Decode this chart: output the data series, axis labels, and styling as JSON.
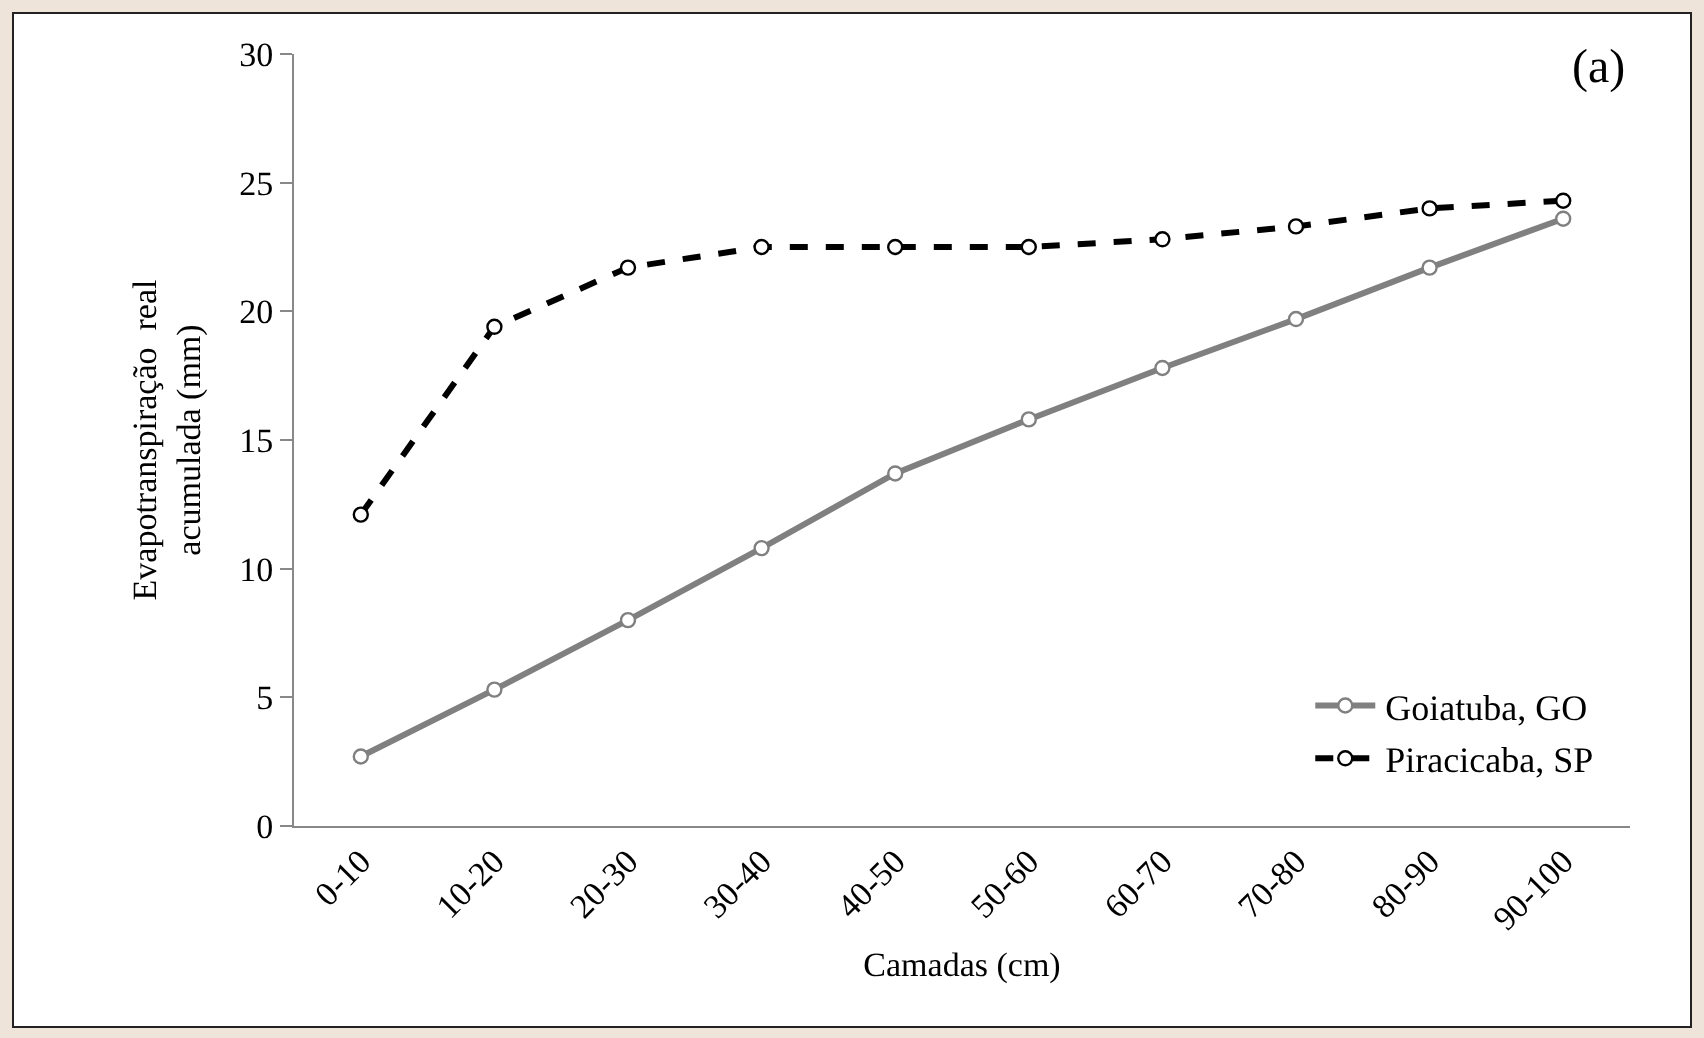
{
  "chart_data": {
    "type": "line",
    "xlabel": "Camadas (cm)",
    "ylabel": "Evapotranspiração  real\nacumulada (mm)",
    "annotations": [
      "(a)"
    ],
    "categories": [
      "0-10",
      "10-20",
      "20-30",
      "30-40",
      "40-50",
      "50-60",
      "60-70",
      "70-80",
      "80-90",
      "90-100"
    ],
    "series": [
      {
        "name": "Goiatuba, GO",
        "color": "#808080",
        "line_style": "solid",
        "values": [
          2.7,
          5.3,
          8.0,
          10.8,
          13.7,
          15.8,
          17.8,
          19.7,
          21.7,
          23.6
        ]
      },
      {
        "name": "Piracicaba, SP",
        "color": "#000000",
        "line_style": "dashed",
        "values": [
          12.1,
          19.4,
          21.7,
          22.5,
          22.5,
          22.5,
          22.8,
          23.3,
          24.0,
          24.3
        ]
      }
    ],
    "ylim": [
      0,
      30
    ],
    "yticks": [
      0,
      5,
      10,
      15,
      20,
      25,
      30
    ],
    "grid": false,
    "legend": "bottom right",
    "marker": "circle"
  }
}
